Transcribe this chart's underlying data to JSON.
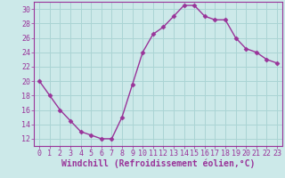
{
  "x": [
    0,
    1,
    2,
    3,
    4,
    5,
    6,
    7,
    8,
    9,
    10,
    11,
    12,
    13,
    14,
    15,
    16,
    17,
    18,
    19,
    20,
    21,
    22,
    23
  ],
  "y": [
    20,
    18,
    16,
    14.5,
    13,
    12.5,
    12,
    12,
    15,
    19.5,
    24,
    26.5,
    27.5,
    29,
    30.5,
    30.5,
    29,
    28.5,
    28.5,
    26,
    24.5,
    24,
    23,
    22.5
  ],
  "line_color": "#993399",
  "marker": "D",
  "marker_size": 2.5,
  "bg_color": "#cce9e9",
  "grid_color": "#aad4d4",
  "xlabel": "Windchill (Refroidissement éolien,°C)",
  "xlabel_color": "#993399",
  "tick_color": "#993399",
  "axis_color": "#993399",
  "xlim": [
    -0.5,
    23.5
  ],
  "ylim": [
    11,
    31
  ],
  "yticks": [
    12,
    14,
    16,
    18,
    20,
    22,
    24,
    26,
    28,
    30
  ],
  "xticks": [
    0,
    1,
    2,
    3,
    4,
    5,
    6,
    7,
    8,
    9,
    10,
    11,
    12,
    13,
    14,
    15,
    16,
    17,
    18,
    19,
    20,
    21,
    22,
    23
  ],
  "tick_fontsize": 6,
  "xlabel_fontsize": 7,
  "line_width": 1.0
}
